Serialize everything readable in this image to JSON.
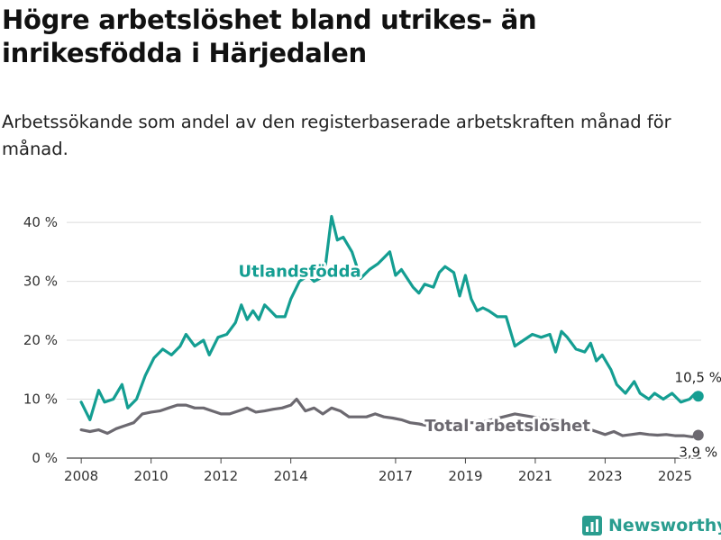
{
  "header": {
    "title": "Högre arbetslöshet bland utrikes- än inrikesfödda i Härjedalen",
    "subtitle": "Arbetssökande som andel av den registerbaserade arbetskraften månad för månad."
  },
  "brand": {
    "name": "Newsworthy",
    "icon": "newsworthy-logo-icon",
    "color": "#2a9d8f"
  },
  "chart_data": {
    "type": "line",
    "title": "Högre arbetslöshet bland utrikes- än inrikesfödda i Härjedalen",
    "subtitle": "Arbetssökande som andel av den registerbaserade arbetskraften månad för månad.",
    "xlabel": "",
    "ylabel": "",
    "x_ticks": [
      "2008",
      "2010",
      "2012",
      "2014",
      "2017",
      "2019",
      "2021",
      "2023",
      "2025"
    ],
    "y_ticks": [
      "0 %",
      "10 %",
      "20 %",
      "30 %",
      "40 %"
    ],
    "ylim": [
      0,
      42
    ],
    "xlim": [
      "2007-08",
      "2025-10"
    ],
    "grid": "horizontal",
    "legend": "inline labels",
    "series": [
      {
        "name": "Utlandsfödda",
        "color": "#149e92",
        "end_label": "10,5 %",
        "points": [
          [
            "2008-01",
            9.5
          ],
          [
            "2008-04",
            6.5
          ],
          [
            "2008-07",
            11.5
          ],
          [
            "2008-09",
            9.5
          ],
          [
            "2008-12",
            10.0
          ],
          [
            "2009-03",
            12.5
          ],
          [
            "2009-05",
            8.5
          ],
          [
            "2009-08",
            10.0
          ],
          [
            "2009-11",
            14.0
          ],
          [
            "2010-02",
            17.0
          ],
          [
            "2010-05",
            18.5
          ],
          [
            "2010-08",
            17.5
          ],
          [
            "2010-11",
            19.0
          ],
          [
            "2011-01",
            21.0
          ],
          [
            "2011-04",
            19.0
          ],
          [
            "2011-07",
            20.0
          ],
          [
            "2011-09",
            17.5
          ],
          [
            "2011-12",
            20.5
          ],
          [
            "2012-03",
            21.0
          ],
          [
            "2012-06",
            23.0
          ],
          [
            "2012-08",
            26.0
          ],
          [
            "2012-10",
            23.5
          ],
          [
            "2012-12",
            25.0
          ],
          [
            "2013-02",
            23.5
          ],
          [
            "2013-04",
            26.0
          ],
          [
            "2013-06",
            25.0
          ],
          [
            "2013-08",
            24.0
          ],
          [
            "2013-11",
            24.0
          ],
          [
            "2014-01",
            27.0
          ],
          [
            "2014-04",
            30.0
          ],
          [
            "2014-07",
            31.0
          ],
          [
            "2014-09",
            30.0
          ],
          [
            "2014-11",
            30.5
          ],
          [
            "2015-01",
            33.0
          ],
          [
            "2015-03",
            41.0
          ],
          [
            "2015-05",
            37.0
          ],
          [
            "2015-07",
            37.5
          ],
          [
            "2015-10",
            35.0
          ],
          [
            "2016-01",
            30.5
          ],
          [
            "2016-04",
            32.0
          ],
          [
            "2016-07",
            33.0
          ],
          [
            "2016-09",
            34.0
          ],
          [
            "2016-11",
            35.0
          ],
          [
            "2017-01",
            31.0
          ],
          [
            "2017-03",
            32.0
          ],
          [
            "2017-05",
            30.5
          ],
          [
            "2017-07",
            29.0
          ],
          [
            "2017-09",
            28.0
          ],
          [
            "2017-11",
            29.5
          ],
          [
            "2018-02",
            29.0
          ],
          [
            "2018-04",
            31.5
          ],
          [
            "2018-06",
            32.5
          ],
          [
            "2018-09",
            31.5
          ],
          [
            "2018-11",
            27.5
          ],
          [
            "2019-01",
            31.0
          ],
          [
            "2019-03",
            27.0
          ],
          [
            "2019-05",
            25.0
          ],
          [
            "2019-07",
            25.5
          ],
          [
            "2019-09",
            25.0
          ],
          [
            "2019-12",
            24.0
          ],
          [
            "2020-03",
            24.0
          ],
          [
            "2020-06",
            19.0
          ],
          [
            "2020-09",
            20.0
          ],
          [
            "2020-12",
            21.0
          ],
          [
            "2021-03",
            20.5
          ],
          [
            "2021-06",
            21.0
          ],
          [
            "2021-08",
            18.0
          ],
          [
            "2021-10",
            21.5
          ],
          [
            "2021-12",
            20.5
          ],
          [
            "2022-03",
            18.5
          ],
          [
            "2022-06",
            18.0
          ],
          [
            "2022-08",
            19.5
          ],
          [
            "2022-10",
            16.5
          ],
          [
            "2022-12",
            17.5
          ],
          [
            "2023-03",
            15.0
          ],
          [
            "2023-05",
            12.5
          ],
          [
            "2023-08",
            11.0
          ],
          [
            "2023-11",
            13.0
          ],
          [
            "2024-01",
            11.0
          ],
          [
            "2024-04",
            10.0
          ],
          [
            "2024-06",
            11.0
          ],
          [
            "2024-09",
            10.0
          ],
          [
            "2024-12",
            11.0
          ],
          [
            "2025-03",
            9.5
          ],
          [
            "2025-06",
            10.0
          ],
          [
            "2025-08",
            11.0
          ],
          [
            "2025-09",
            10.5
          ]
        ]
      },
      {
        "name": "Total arbetslöshet",
        "color": "#6c6970",
        "end_label": "3,9 %",
        "points": [
          [
            "2008-01",
            4.8
          ],
          [
            "2008-04",
            4.5
          ],
          [
            "2008-07",
            4.8
          ],
          [
            "2008-10",
            4.2
          ],
          [
            "2009-01",
            5.0
          ],
          [
            "2009-04",
            5.5
          ],
          [
            "2009-07",
            6.0
          ],
          [
            "2009-10",
            7.5
          ],
          [
            "2010-01",
            7.8
          ],
          [
            "2010-04",
            8.0
          ],
          [
            "2010-07",
            8.5
          ],
          [
            "2010-10",
            9.0
          ],
          [
            "2011-01",
            9.0
          ],
          [
            "2011-04",
            8.5
          ],
          [
            "2011-07",
            8.5
          ],
          [
            "2011-10",
            8.0
          ],
          [
            "2012-01",
            7.5
          ],
          [
            "2012-04",
            7.5
          ],
          [
            "2012-07",
            8.0
          ],
          [
            "2012-10",
            8.5
          ],
          [
            "2013-01",
            7.8
          ],
          [
            "2013-04",
            8.0
          ],
          [
            "2013-07",
            8.3
          ],
          [
            "2013-10",
            8.5
          ],
          [
            "2014-01",
            9.0
          ],
          [
            "2014-03",
            10.0
          ],
          [
            "2014-06",
            8.0
          ],
          [
            "2014-09",
            8.5
          ],
          [
            "2014-12",
            7.5
          ],
          [
            "2015-03",
            8.5
          ],
          [
            "2015-06",
            8.0
          ],
          [
            "2015-09",
            7.0
          ],
          [
            "2015-12",
            7.0
          ],
          [
            "2016-03",
            7.0
          ],
          [
            "2016-06",
            7.5
          ],
          [
            "2016-09",
            7.0
          ],
          [
            "2016-12",
            6.8
          ],
          [
            "2017-03",
            6.5
          ],
          [
            "2017-06",
            6.0
          ],
          [
            "2017-09",
            5.8
          ],
          [
            "2017-12",
            5.5
          ],
          [
            "2018-06",
            6.0
          ],
          [
            "2019-06",
            6.0
          ],
          [
            "2020-06",
            7.5
          ],
          [
            "2021-06",
            6.5
          ],
          [
            "2022-01",
            6.0
          ],
          [
            "2022-04",
            5.0
          ],
          [
            "2022-07",
            5.0
          ],
          [
            "2022-10",
            4.5
          ],
          [
            "2023-01",
            4.0
          ],
          [
            "2023-04",
            4.5
          ],
          [
            "2023-07",
            3.8
          ],
          [
            "2023-10",
            4.0
          ],
          [
            "2024-01",
            4.2
          ],
          [
            "2024-04",
            4.0
          ],
          [
            "2024-07",
            3.9
          ],
          [
            "2024-10",
            4.0
          ],
          [
            "2025-01",
            3.8
          ],
          [
            "2025-04",
            3.8
          ],
          [
            "2025-07",
            3.6
          ],
          [
            "2025-09",
            3.9
          ]
        ]
      }
    ]
  }
}
